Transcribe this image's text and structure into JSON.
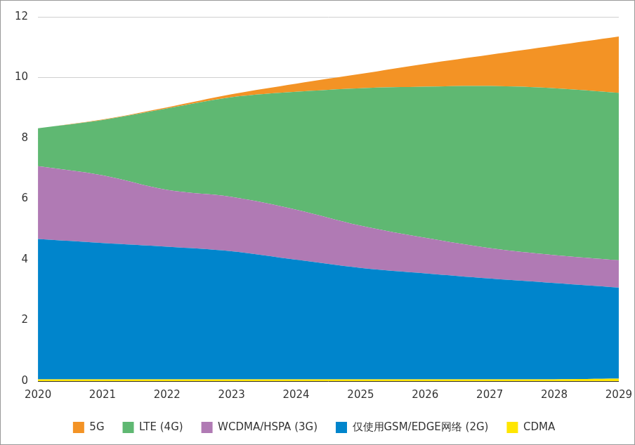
{
  "chart_data": {
    "type": "area",
    "stacked": true,
    "grid": true,
    "legend": "bottom",
    "categories": [
      "2020",
      "2021",
      "2022",
      "2023",
      "2024",
      "2025",
      "2026",
      "2027",
      "2028",
      "2029"
    ],
    "ylim": [
      0,
      12
    ],
    "yticks": [
      0,
      2,
      4,
      6,
      8,
      10,
      12
    ],
    "series": [
      {
        "name": "CDMA",
        "color": "#ffe600",
        "values": [
          0.06,
          0.06,
          0.06,
          0.06,
          0.06,
          0.06,
          0.06,
          0.06,
          0.06,
          0.08
        ]
      },
      {
        "name": "仅使用GSM/EDGE网络 (2G)",
        "color": "#0085cc",
        "values": [
          4.62,
          4.49,
          4.37,
          4.22,
          3.94,
          3.67,
          3.49,
          3.32,
          3.17,
          3.0
        ]
      },
      {
        "name": "WCDMA/HSPA (3G)",
        "color": "#b07ab4",
        "values": [
          2.4,
          2.23,
          1.87,
          1.79,
          1.65,
          1.39,
          1.17,
          1.0,
          0.92,
          0.9
        ]
      },
      {
        "name": "LTE (4G)",
        "color": "#5fb872",
        "values": [
          1.25,
          1.82,
          2.68,
          3.28,
          3.88,
          4.53,
          4.98,
          5.34,
          5.5,
          5.52
        ]
      },
      {
        "name": "5G",
        "color": "#f39325",
        "values": [
          0,
          0.02,
          0.04,
          0.1,
          0.27,
          0.47,
          0.75,
          1.03,
          1.4,
          1.85
        ]
      }
    ]
  }
}
